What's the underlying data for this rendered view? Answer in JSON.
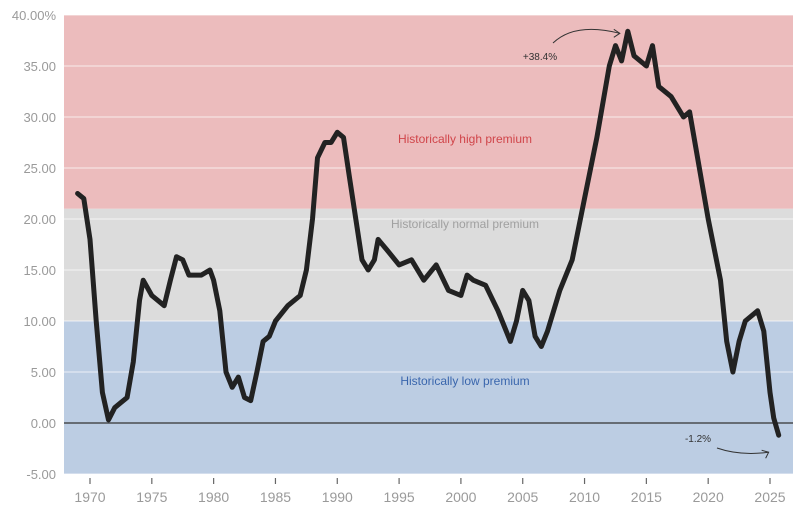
{
  "chart_data": {
    "type": "line",
    "title": "",
    "xlabel": "",
    "ylabel": "",
    "xlim": [
      1968,
      2027
    ],
    "ylim": [
      -5,
      40
    ],
    "grid": true,
    "y_ticks": [
      -5,
      0,
      5,
      10,
      15,
      20,
      25,
      30,
      35,
      40
    ],
    "y_tick_labels": [
      "-5.00",
      "0.00",
      "5.00",
      "10.00",
      "15.00",
      "20.00",
      "25.00",
      "30.00",
      "35.00",
      "40.00%"
    ],
    "x_ticks": [
      1970,
      1975,
      1980,
      1985,
      1990,
      1995,
      2000,
      2005,
      2010,
      2015,
      2020,
      2025
    ],
    "x_tick_labels": [
      "1970",
      "1975",
      "1980",
      "1985",
      "1990",
      "1995",
      "2000",
      "2005",
      "2010",
      "2015",
      "2020",
      "2025"
    ],
    "bands": [
      {
        "label": "Historically high premium",
        "from": 21,
        "to": 40,
        "color": "#ecbcbd",
        "text_color": "#d0454a"
      },
      {
        "label": "Historically normal premium",
        "from": 10,
        "to": 21,
        "color": "#dcdcdc",
        "text_color": "#a0a0a0"
      },
      {
        "label": "Historically low premium",
        "from": -5,
        "to": 10,
        "color": "#bccde3",
        "text_color": "#3a66ad"
      }
    ],
    "line_color": "#222222",
    "x": [
      1969,
      1969.5,
      1970,
      1970.5,
      1971,
      1971.5,
      1972,
      1972.5,
      1973,
      1973.5,
      1974,
      1974.3,
      1975,
      1975.5,
      1976,
      1976.5,
      1977,
      1977.5,
      1978,
      1979,
      1979.7,
      1980,
      1980.5,
      1981,
      1981.5,
      1982,
      1982.5,
      1983,
      1983.5,
      1984,
      1984.5,
      1985,
      1986,
      1987,
      1987.5,
      1988,
      1988.4,
      1989,
      1989.5,
      1990,
      1990.5,
      1991,
      1991.5,
      1992,
      1992.5,
      1993,
      1993.3,
      1994,
      1995,
      1996,
      1997,
      1998,
      1999,
      2000,
      2000.5,
      2001,
      2002,
      2003,
      2004,
      2004.5,
      2005,
      2005.5,
      2006,
      2006.5,
      2007,
      2008,
      2009,
      2010,
      2011,
      2012,
      2012.5,
      2013,
      2013.5,
      2014,
      2015,
      2015.5,
      2016,
      2017,
      2018,
      2018.5,
      2019,
      2020,
      2021,
      2021.5,
      2022,
      2022.5,
      2023,
      2024,
      2024.5,
      2025,
      2025.3,
      2025.7
    ],
    "y": [
      22.5,
      22,
      18,
      10,
      3,
      0.3,
      1.5,
      2,
      2.5,
      6,
      12,
      14,
      12.5,
      12,
      11.5,
      14,
      16.3,
      16,
      14.5,
      14.5,
      15,
      14,
      11,
      5,
      3.5,
      4.5,
      2.5,
      2.2,
      5,
      8,
      8.5,
      10,
      11.5,
      12.5,
      15,
      20,
      26,
      27.5,
      27.5,
      28.5,
      28,
      24,
      20,
      16,
      15,
      16,
      18,
      17,
      15.5,
      16,
      14,
      15.5,
      13,
      12.5,
      14.5,
      14,
      13.5,
      11,
      8,
      10,
      13,
      12,
      8.5,
      7.5,
      9,
      13,
      16,
      22,
      28,
      35,
      37,
      35.5,
      38.4,
      36,
      35,
      37,
      33,
      32,
      30,
      30.5,
      27,
      20,
      14,
      8,
      5,
      8,
      10,
      11,
      9,
      3,
      0.5,
      -1.2
    ],
    "annotations": [
      {
        "text": "+38.4%",
        "x": 2013.5,
        "y": 38.4
      },
      {
        "text": "-1.2%",
        "x": 2025.7,
        "y": -1.2
      }
    ]
  }
}
